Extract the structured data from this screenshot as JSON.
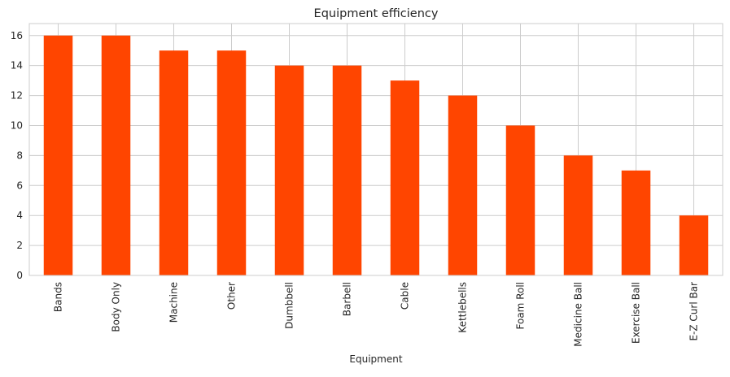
{
  "chart_data": {
    "type": "bar",
    "title": "Equipment efficiency",
    "xlabel": "Equipment",
    "ylabel": "",
    "categories": [
      "Bands",
      "Body Only",
      "Machine",
      "Other",
      "Dumbbell",
      "Barbell",
      "Cable",
      "Kettlebells",
      "Foam Roll",
      "Medicine Ball",
      "Exercise Ball",
      "E-Z Curl Bar"
    ],
    "values": [
      16,
      16,
      15,
      15,
      14,
      14,
      13,
      12,
      10,
      8,
      7,
      4
    ],
    "ylim": [
      0,
      16.8
    ],
    "yticks": [
      0,
      2,
      4,
      6,
      8,
      10,
      12,
      14,
      16
    ],
    "grid": true,
    "bar_color": "#FF4500",
    "grid_color": "#CCCCCC",
    "legend": "none"
  }
}
